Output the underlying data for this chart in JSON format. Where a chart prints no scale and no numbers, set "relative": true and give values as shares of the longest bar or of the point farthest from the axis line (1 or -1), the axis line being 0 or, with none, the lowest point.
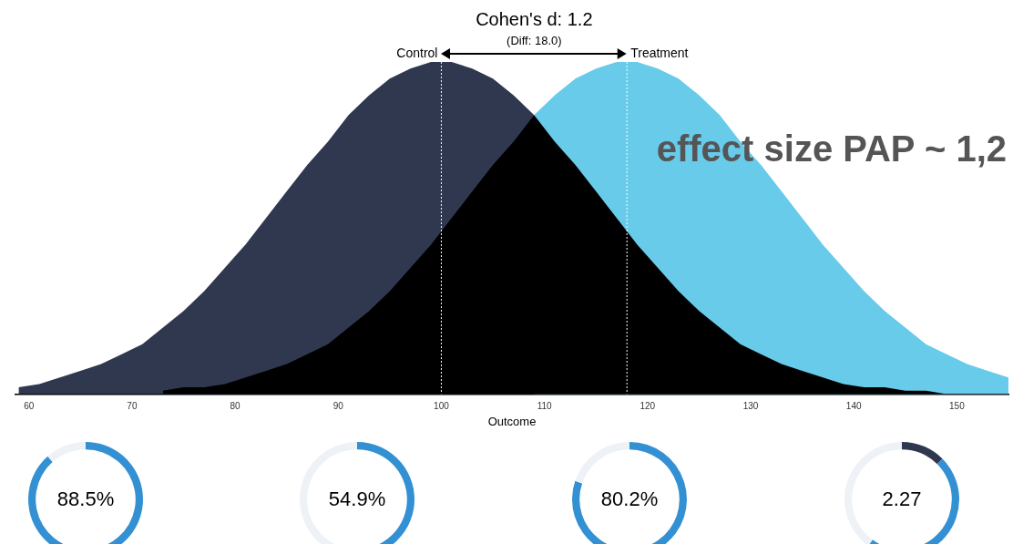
{
  "chart_data": [
    {
      "type": "area",
      "title": "Cohen's d: 1.2",
      "subtitle": "(Diff: 18.0)",
      "xlabel": "Outcome",
      "relative": true,
      "legend": false,
      "grid": false,
      "xlim": [
        58.7,
        155
      ],
      "xticks": [
        60,
        70,
        80,
        90,
        100,
        110,
        120,
        130,
        140,
        150
      ],
      "series": [
        {
          "name": "Control",
          "color": "#303850",
          "x": [
            59,
            61,
            63,
            65,
            67,
            69,
            71,
            73,
            75,
            77,
            79,
            81,
            83,
            85,
            87,
            89,
            91,
            93,
            95,
            97,
            99,
            101,
            103,
            105,
            107,
            109
          ],
          "values": [
            0.02,
            0.03,
            0.05,
            0.07,
            0.09,
            0.12,
            0.15,
            0.2,
            0.25,
            0.31,
            0.38,
            0.45,
            0.53,
            0.61,
            0.69,
            0.76,
            0.84,
            0.9,
            0.95,
            0.98,
            1,
            1,
            0.98,
            0.95,
            0.9,
            0.84
          ]
        },
        {
          "name": "Treatment",
          "color": "#68cbea",
          "x": [
            109,
            111,
            113,
            115,
            117,
            119,
            121,
            123,
            125,
            127,
            129,
            131,
            133,
            135,
            137,
            139,
            141,
            143,
            145,
            147,
            149,
            151,
            153,
            155
          ],
          "values": [
            0.84,
            0.9,
            0.95,
            0.98,
            1,
            1,
            0.98,
            0.95,
            0.9,
            0.84,
            0.76,
            0.69,
            0.61,
            0.53,
            0.45,
            0.38,
            0.31,
            0.25,
            0.2,
            0.15,
            0.12,
            0.09,
            0.07,
            0.05
          ]
        },
        {
          "color": "#000000",
          "x": [
            73,
            75,
            77,
            79,
            81,
            83,
            85,
            87,
            89,
            91,
            93,
            95,
            97,
            99,
            101,
            103,
            105,
            107,
            109,
            111,
            113,
            115,
            117,
            119,
            121,
            123,
            125,
            127,
            129,
            131,
            133,
            135,
            137,
            139,
            141,
            143,
            145,
            147,
            149,
            151,
            153,
            155
          ],
          "values": [
            0.01,
            0.02,
            0.02,
            0.03,
            0.05,
            0.07,
            0.09,
            0.12,
            0.15,
            0.2,
            0.25,
            0.31,
            0.38,
            0.45,
            0.53,
            0.61,
            0.69,
            0.76,
            0.84,
            0.76,
            0.69,
            0.61,
            0.53,
            0.45,
            0.38,
            0.31,
            0.25,
            0.2,
            0.15,
            0.12,
            0.09,
            0.07,
            0.05,
            0.03,
            0.02,
            0.02,
            0.01,
            0.01,
            0,
            0,
            0,
            0
          ]
        }
      ],
      "ref_lines": [
        {
          "axis": "x",
          "value": 100,
          "color": "#ffffff",
          "line_style": "dotted"
        },
        {
          "axis": "x",
          "value": 118,
          "color": "#ffffff",
          "line_style": "dotted"
        }
      ],
      "annotations": [
        "effect size PAP ~ 1,2"
      ]
    },
    {
      "type": "donut",
      "categories": [
        null,
        null
      ],
      "values": [
        88.5,
        11.5
      ],
      "colors": [
        "#3390d3",
        "#eef2f6"
      ],
      "value_labels": [
        "88.5%",
        null
      ]
    },
    {
      "type": "donut",
      "categories": [
        null,
        null
      ],
      "values": [
        54.9,
        45.1
      ],
      "colors": [
        "#3390d3",
        "#eef2f6"
      ],
      "value_labels": [
        "54.9%",
        null
      ]
    },
    {
      "type": "donut",
      "categories": [
        null,
        null
      ],
      "values": [
        80.2,
        19.8
      ],
      "colors": [
        "#3390d3",
        "#eef2f6"
      ],
      "value_labels": [
        "80.2%",
        null
      ]
    },
    {
      "type": "donut",
      "categories": [
        null,
        null,
        null
      ],
      "values": [
        12.5,
        47.5,
        40
      ],
      "colors": [
        "#303850",
        "#3390d3",
        "#eef2f6"
      ],
      "annotations": [
        "2.27"
      ]
    }
  ]
}
